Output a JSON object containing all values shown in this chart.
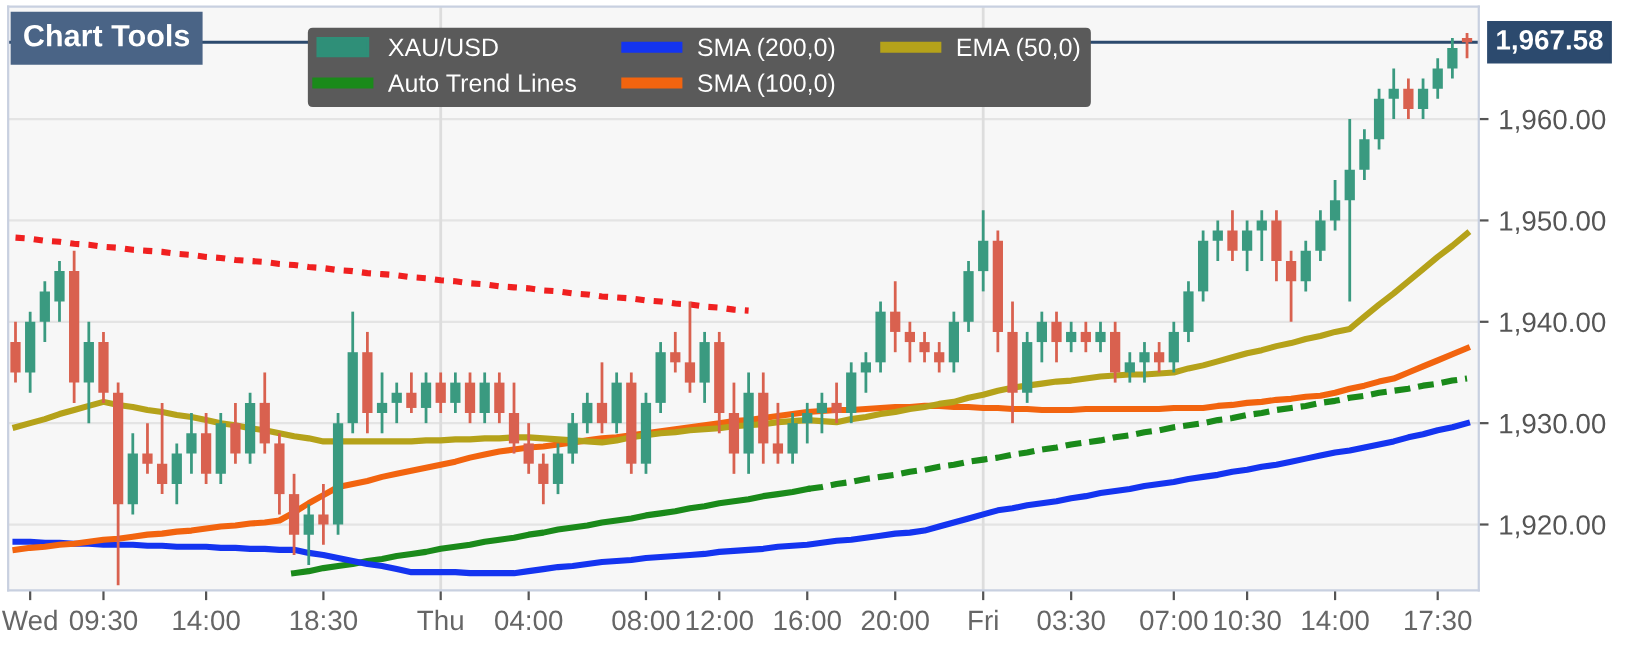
{
  "chart_data": {
    "type": "candlestick",
    "categories": [
      null,
      "Wed",
      null,
      null,
      null,
      null,
      "09:30",
      null,
      null,
      null,
      null,
      null,
      null,
      "14:00",
      null,
      null,
      null,
      null,
      null,
      null,
      null,
      "18:30",
      null,
      null,
      null,
      null,
      null,
      null,
      null,
      "Thu",
      null,
      null,
      null,
      null,
      null,
      "04:00",
      null,
      null,
      null,
      null,
      null,
      null,
      null,
      "08:00",
      null,
      null,
      null,
      null,
      "12:00",
      null,
      null,
      null,
      null,
      null,
      "16:00",
      null,
      null,
      null,
      null,
      null,
      "20:00",
      null,
      null,
      null,
      null,
      null,
      "Fri",
      null,
      null,
      null,
      null,
      null,
      "03:30",
      null,
      null,
      null,
      null,
      null,
      null,
      "07:00",
      null,
      null,
      null,
      null,
      "10:30",
      null,
      null,
      null,
      null,
      null,
      "14:00",
      null,
      null,
      null,
      null,
      null,
      null,
      "17:30",
      null,
      null
    ],
    "ylim": [
      1913.5,
      1971.1
    ],
    "yticks": [
      {
        "value": 1920,
        "label": "1,920.00"
      },
      {
        "value": 1930,
        "label": "1,930.00"
      },
      {
        "value": 1940,
        "label": "1,940.00"
      },
      {
        "value": 1950,
        "label": "1,950.00"
      },
      {
        "value": 1960,
        "label": "1,960.00"
      }
    ],
    "grid": "y",
    "legend": "top",
    "ref_lines": [
      {
        "axis": "y",
        "value": 1967.58,
        "label": "1,967.58",
        "color": "#2c4a6e"
      },
      {
        "axis": "x",
        "value": "Thu",
        "color": "#dddddd"
      },
      {
        "axis": "x",
        "value": "Fri",
        "color": "#dddddd"
      }
    ],
    "annotations": [
      "Chart Tools"
    ],
    "series": [
      {
        "name": "XAU/USD",
        "color": "#2f8f78",
        "ohlc": [
          [
            1938,
            1940,
            1934,
            1935
          ],
          [
            1935,
            1941,
            1933,
            1940
          ],
          [
            1940,
            1944,
            1938,
            1943
          ],
          [
            1942,
            1946,
            1940,
            1945
          ],
          [
            1945,
            1947,
            1932,
            1934
          ],
          [
            1934,
            1940,
            1930,
            1938
          ],
          [
            1938,
            1939,
            1932,
            1933
          ],
          [
            1933,
            1934,
            1914,
            1922
          ],
          [
            1922,
            1929,
            1921,
            1927
          ],
          [
            1927,
            1930,
            1925,
            1926
          ],
          [
            1926,
            1932,
            1923,
            1924
          ],
          [
            1924,
            1928,
            1922,
            1927
          ],
          [
            1927,
            1931,
            1925,
            1929
          ],
          [
            1929,
            1931,
            1924,
            1925
          ],
          [
            1925,
            1931,
            1924,
            1930
          ],
          [
            1930,
            1932,
            1926,
            1927
          ],
          [
            1927,
            1933,
            1926,
            1932
          ],
          [
            1932,
            1935,
            1927,
            1928
          ],
          [
            1928,
            1929,
            1921,
            1923
          ],
          [
            1923,
            1925,
            1917,
            1919
          ],
          [
            1919,
            1922,
            1916,
            1921
          ],
          [
            1921,
            1924,
            1918,
            1920
          ],
          [
            1920,
            1931,
            1919,
            1930
          ],
          [
            1930,
            1941,
            1929,
            1937
          ],
          [
            1937,
            1939,
            1929,
            1931
          ],
          [
            1931,
            1935,
            1929,
            1932
          ],
          [
            1932,
            1934,
            1930,
            1933
          ],
          [
            1933,
            1935,
            1931,
            1931.5
          ],
          [
            1931.5,
            1935,
            1930,
            1934
          ],
          [
            1934,
            1935,
            1931,
            1932
          ],
          [
            1932,
            1935,
            1931,
            1934
          ],
          [
            1934,
            1935,
            1930,
            1931
          ],
          [
            1931,
            1935,
            1930,
            1934
          ],
          [
            1934,
            1935,
            1930,
            1931
          ],
          [
            1931,
            1934,
            1927,
            1928
          ],
          [
            1928,
            1930,
            1925,
            1926
          ],
          [
            1926,
            1927,
            1922,
            1924
          ],
          [
            1924,
            1928,
            1923,
            1927
          ],
          [
            1927,
            1931,
            1926,
            1930
          ],
          [
            1930,
            1933,
            1929,
            1932
          ],
          [
            1932,
            1936,
            1929,
            1930
          ],
          [
            1930,
            1935,
            1929,
            1934
          ],
          [
            1934,
            1935,
            1925,
            1926
          ],
          [
            1926,
            1933,
            1925,
            1932
          ],
          [
            1932,
            1938,
            1931,
            1937
          ],
          [
            1937,
            1939,
            1935,
            1936
          ],
          [
            1936,
            1942,
            1933,
            1934
          ],
          [
            1934,
            1939,
            1932,
            1938
          ],
          [
            1938,
            1939,
            1929,
            1931
          ],
          [
            1931,
            1934,
            1925,
            1927
          ],
          [
            1927,
            1935,
            1925,
            1933
          ],
          [
            1933,
            1935,
            1926,
            1928
          ],
          [
            1928,
            1932,
            1926,
            1927
          ],
          [
            1927,
            1931,
            1926,
            1930
          ],
          [
            1930,
            1932,
            1928,
            1931
          ],
          [
            1931,
            1933,
            1929,
            1932
          ],
          [
            1932,
            1934,
            1930,
            1931
          ],
          [
            1931,
            1936,
            1930,
            1935
          ],
          [
            1935,
            1937,
            1933,
            1936
          ],
          [
            1936,
            1942,
            1935,
            1941
          ],
          [
            1941,
            1944,
            1937,
            1939
          ],
          [
            1939,
            1940,
            1936,
            1938
          ],
          [
            1938,
            1939,
            1936,
            1937
          ],
          [
            1937,
            1938,
            1935,
            1936
          ],
          [
            1936,
            1941,
            1935,
            1940
          ],
          [
            1940,
            1946,
            1939,
            1945
          ],
          [
            1945,
            1951,
            1943,
            1948
          ],
          [
            1948,
            1949,
            1937,
            1939
          ],
          [
            1939,
            1942,
            1930,
            1933
          ],
          [
            1933,
            1939,
            1932,
            1938
          ],
          [
            1938,
            1941,
            1936,
            1940
          ],
          [
            1940,
            1941,
            1936,
            1938
          ],
          [
            1938,
            1940,
            1937,
            1939
          ],
          [
            1939,
            1940,
            1937,
            1938
          ],
          [
            1938,
            1940,
            1937,
            1939
          ],
          [
            1939,
            1940,
            1934,
            1935
          ],
          [
            1935,
            1937,
            1934,
            1936
          ],
          [
            1936,
            1938,
            1934,
            1937
          ],
          [
            1937,
            1938,
            1935,
            1936
          ],
          [
            1936,
            1940,
            1935,
            1939
          ],
          [
            1939,
            1944,
            1938,
            1943
          ],
          [
            1943,
            1949,
            1942,
            1948
          ],
          [
            1948,
            1950,
            1946,
            1949
          ],
          [
            1949,
            1951,
            1946,
            1947
          ],
          [
            1947,
            1950,
            1945,
            1949
          ],
          [
            1949,
            1951,
            1946,
            1950
          ],
          [
            1950,
            1951,
            1944,
            1946
          ],
          [
            1946,
            1947,
            1940,
            1944
          ],
          [
            1944,
            1948,
            1943,
            1947
          ],
          [
            1947,
            1951,
            1946,
            1950
          ],
          [
            1950,
            1954,
            1949,
            1952
          ],
          [
            1952,
            1960,
            1942,
            1955
          ],
          [
            1955,
            1959,
            1954,
            1958
          ],
          [
            1958,
            1963,
            1957,
            1962
          ],
          [
            1962,
            1965,
            1960,
            1963
          ],
          [
            1963,
            1964,
            1960,
            1961
          ],
          [
            1961,
            1964,
            1960,
            1963
          ],
          [
            1963,
            1966,
            1962,
            1965
          ],
          [
            1965,
            1968,
            1964,
            1967
          ],
          [
            1968,
            1968.5,
            1966,
            1967.58
          ]
        ],
        "colors": [
          "#d9614f",
          "#3a9a80",
          "#3a9a80",
          "#3a9a80",
          "#d9614f",
          "#3a9a80",
          "#d9614f",
          "#d9614f",
          "#3a9a80",
          "#d9614f",
          "#d9614f",
          "#3a9a80",
          "#3a9a80",
          "#d9614f",
          "#3a9a80",
          "#d9614f",
          "#3a9a80",
          "#d9614f",
          "#d9614f",
          "#d9614f",
          "#3a9a80",
          "#d9614f",
          "#3a9a80",
          "#3a9a80",
          "#d9614f",
          "#3a9a80",
          "#3a9a80",
          "#d9614f",
          "#3a9a80",
          "#d9614f",
          "#3a9a80",
          "#d9614f",
          "#3a9a80",
          "#d9614f",
          "#d9614f",
          "#d9614f",
          "#d9614f",
          "#3a9a80",
          "#3a9a80",
          "#3a9a80",
          "#d9614f",
          "#3a9a80",
          "#d9614f",
          "#3a9a80",
          "#3a9a80",
          "#d9614f",
          "#d9614f",
          "#3a9a80",
          "#d9614f",
          "#d9614f",
          "#3a9a80",
          "#d9614f",
          "#d9614f",
          "#3a9a80",
          "#3a9a80",
          "#3a9a80",
          "#d9614f",
          "#3a9a80",
          "#3a9a80",
          "#3a9a80",
          "#d9614f",
          "#d9614f",
          "#d9614f",
          "#d9614f",
          "#3a9a80",
          "#3a9a80",
          "#3a9a80",
          "#d9614f",
          "#d9614f",
          "#3a9a80",
          "#3a9a80",
          "#d9614f",
          "#3a9a80",
          "#d9614f",
          "#3a9a80",
          "#d9614f",
          "#3a9a80",
          "#3a9a80",
          "#d9614f",
          "#3a9a80",
          "#3a9a80",
          "#3a9a80",
          "#3a9a80",
          "#d9614f",
          "#3a9a80",
          "#3a9a80",
          "#d9614f",
          "#d9614f",
          "#3a9a80",
          "#3a9a80",
          "#3a9a80",
          "#3a9a80",
          "#3a9a80",
          "#3a9a80",
          "#3a9a80",
          "#d9614f",
          "#3a9a80",
          "#3a9a80",
          "#3a9a80",
          "#d9614f"
        ]
      },
      {
        "name": "Auto Trend Lines",
        "type": "line",
        "color": "#1a8a1a",
        "line_style": "solid",
        "values": [
          null,
          null,
          null,
          null,
          null,
          null,
          null,
          null,
          null,
          null,
          null,
          null,
          null,
          null,
          null,
          null,
          null,
          null,
          null,
          1915.2,
          1915.4,
          1915.7,
          1915.9,
          1916.1,
          1916.4,
          1916.6,
          1916.9,
          1917.1,
          1917.3,
          1917.6,
          1917.8,
          1918.0,
          1918.3,
          1918.5,
          1918.7,
          1919.0,
          1919.2,
          1919.5,
          1919.7,
          1919.9,
          1920.2,
          1920.4,
          1920.6,
          1920.9,
          1921.1,
          1921.3,
          1921.6,
          1921.8,
          1922.1,
          1922.3,
          1922.5,
          1922.8,
          1923.0,
          1923.2,
          1923.5,
          null,
          null,
          null,
          null,
          null,
          null,
          null,
          null,
          null,
          null,
          null,
          null,
          null,
          null,
          null,
          null,
          null,
          null,
          null,
          null,
          null,
          null,
          null,
          null,
          null,
          null,
          null,
          null,
          null,
          null,
          null,
          null,
          null,
          null,
          null,
          null,
          null,
          null,
          null,
          null,
          null,
          null,
          null,
          null,
          null
        ]
      },
      {
        "type": "line",
        "color": "#1a8a1a",
        "line_style": "dashed",
        "values": [
          null,
          null,
          null,
          null,
          null,
          null,
          null,
          null,
          null,
          null,
          null,
          null,
          null,
          null,
          null,
          null,
          null,
          null,
          null,
          null,
          null,
          null,
          null,
          null,
          null,
          null,
          null,
          null,
          null,
          null,
          null,
          null,
          null,
          null,
          null,
          null,
          null,
          null,
          null,
          null,
          null,
          null,
          null,
          null,
          null,
          null,
          null,
          null,
          null,
          null,
          null,
          null,
          null,
          null,
          1923.5,
          1923.7,
          1924.0,
          1924.2,
          1924.5,
          1924.7,
          1924.9,
          1925.2,
          1925.4,
          1925.7,
          1925.9,
          1926.2,
          1926.4,
          1926.6,
          1926.9,
          1927.1,
          1927.4,
          1927.6,
          1927.9,
          1928.1,
          1928.3,
          1928.6,
          1928.8,
          1929.1,
          1929.3,
          1929.6,
          1929.8,
          1930.0,
          1930.3,
          1930.5,
          1930.8,
          1931.0,
          1931.3,
          1931.5,
          1931.7,
          1932.0,
          1932.2,
          1932.5,
          1932.7,
          1933.0,
          1933.2,
          1933.4,
          1933.7,
          1933.9,
          1934.2,
          1934.4
        ]
      },
      {
        "type": "line",
        "color": "#f02020",
        "line_style": "dotted",
        "values": [
          1948.3,
          1948.2,
          1948.0,
          1947.9,
          1947.7,
          1947.6,
          1947.4,
          1947.3,
          1947.1,
          1947.0,
          1946.9,
          1946.7,
          1946.6,
          1946.4,
          1946.3,
          1946.1,
          1946.0,
          1945.9,
          1945.7,
          1945.6,
          1945.4,
          1945.3,
          1945.1,
          1945.0,
          1944.8,
          1944.7,
          1944.6,
          1944.4,
          1944.3,
          1944.1,
          1944.0,
          1943.8,
          1943.7,
          1943.5,
          1943.4,
          1943.3,
          1943.1,
          1943.0,
          1942.8,
          1942.7,
          1942.5,
          1942.4,
          1942.3,
          1942.1,
          1942.0,
          1941.8,
          1941.7,
          1941.5,
          1941.4,
          1941.2,
          1941.1,
          null,
          null,
          null,
          null,
          null,
          null,
          null,
          null,
          null,
          null,
          null,
          null,
          null,
          null,
          null,
          null,
          null,
          null,
          null,
          null,
          null,
          null,
          null,
          null,
          null,
          null,
          null,
          null,
          null,
          null,
          null,
          null,
          null,
          null,
          null,
          null,
          null,
          null,
          null,
          null,
          null,
          null,
          null,
          null,
          null,
          null,
          null,
          null,
          null
        ]
      },
      {
        "name": "SMA (200,0)",
        "type": "line",
        "color": "#1434f0",
        "line_style": "solid",
        "values": [
          1918.3,
          1918.3,
          1918.2,
          1918.2,
          1918.1,
          1918.1,
          1918.0,
          1918.0,
          1918.0,
          1917.9,
          1917.9,
          1917.8,
          1917.8,
          1917.8,
          1917.7,
          1917.7,
          1917.6,
          1917.6,
          1917.5,
          1917.5,
          1917.2,
          1917.0,
          1916.7,
          1916.4,
          1916.1,
          1915.9,
          1915.6,
          1915.3,
          1915.3,
          1915.3,
          1915.3,
          1915.2,
          1915.2,
          1915.2,
          1915.2,
          1915.4,
          1915.6,
          1915.8,
          1915.9,
          1916.1,
          1916.3,
          1916.4,
          1916.5,
          1916.7,
          1916.8,
          1916.9,
          1917.0,
          1917.1,
          1917.3,
          1917.4,
          1917.5,
          1917.6,
          1917.8,
          1917.9,
          1918.0,
          1918.2,
          1918.4,
          1918.5,
          1918.7,
          1918.9,
          1919.1,
          1919.2,
          1919.4,
          1919.8,
          1920.2,
          1920.6,
          1921.0,
          1921.4,
          1921.6,
          1921.9,
          1922.1,
          1922.3,
          1922.6,
          1922.8,
          1923.1,
          1923.3,
          1923.5,
          1923.8,
          1924.0,
          1924.2,
          1924.5,
          1924.7,
          1924.9,
          1925.2,
          1925.4,
          1925.7,
          1925.9,
          1926.2,
          1926.5,
          1926.8,
          1927.1,
          1927.3,
          1927.6,
          1927.9,
          1928.2,
          1928.6,
          1928.9,
          1929.3,
          1929.6,
          1930.0
        ]
      },
      {
        "name": "SMA (100,0)",
        "type": "line",
        "color": "#f2640f",
        "line_style": "solid",
        "values": [
          1917.5,
          1917.7,
          1917.8,
          1918.0,
          1918.1,
          1918.3,
          1918.5,
          1918.6,
          1918.8,
          1919.0,
          1919.1,
          1919.3,
          1919.4,
          1919.6,
          1919.8,
          1919.9,
          1920.1,
          1920.2,
          1920.4,
          1921.2,
          1922.1,
          1922.9,
          1923.7,
          1924.0,
          1924.3,
          1924.7,
          1925.0,
          1925.3,
          1925.6,
          1925.9,
          1926.2,
          1926.6,
          1926.9,
          1927.2,
          1927.4,
          1927.6,
          1927.7,
          1927.9,
          1928.1,
          1928.3,
          1928.5,
          1928.6,
          1928.8,
          1929.0,
          1929.2,
          1929.4,
          1929.6,
          1929.8,
          1930.0,
          1930.2,
          1930.3,
          1930.5,
          1930.7,
          1930.9,
          1931.1,
          1931.2,
          1931.3,
          1931.3,
          1931.4,
          1931.5,
          1931.6,
          1931.6,
          1931.7,
          1931.7,
          1931.6,
          1931.6,
          1931.5,
          1931.5,
          1931.4,
          1931.4,
          1931.3,
          1931.3,
          1931.3,
          1931.4,
          1931.4,
          1931.4,
          1931.4,
          1931.4,
          1931.4,
          1931.5,
          1931.5,
          1931.5,
          1931.7,
          1931.8,
          1932.0,
          1932.1,
          1932.3,
          1932.4,
          1932.6,
          1932.7,
          1933.0,
          1933.4,
          1933.7,
          1934.1,
          1934.4,
          1935.0,
          1935.6,
          1936.2,
          1936.8,
          1937.4
        ]
      },
      {
        "name": "EMA (50,0)",
        "type": "line",
        "color": "#b5a21a",
        "line_style": "solid",
        "values": [
          1929.6,
          1930.0,
          1930.4,
          1930.9,
          1931.3,
          1931.7,
          1932.1,
          1931.8,
          1931.6,
          1931.3,
          1931.1,
          1930.8,
          1930.6,
          1930.3,
          1930.0,
          1929.8,
          1929.5,
          1929.3,
          1929.0,
          1928.7,
          1928.5,
          1928.2,
          1928.2,
          1928.2,
          1928.2,
          1928.2,
          1928.2,
          1928.2,
          1928.3,
          1928.3,
          1928.4,
          1928.4,
          1928.5,
          1928.5,
          1928.6,
          1928.6,
          1928.5,
          1928.4,
          1928.3,
          1928.2,
          1928.1,
          1928.3,
          1928.6,
          1928.8,
          1929.0,
          1929.1,
          1929.3,
          1929.4,
          1929.5,
          1929.7,
          1929.8,
          1929.9,
          1930.1,
          1930.2,
          1930.3,
          1930.2,
          1930.1,
          1930.4,
          1930.6,
          1930.9,
          1931.1,
          1931.4,
          1931.6,
          1931.9,
          1932.1,
          1932.5,
          1932.8,
          1933.2,
          1933.5,
          1933.7,
          1933.9,
          1934.1,
          1934.2,
          1934.4,
          1934.6,
          1934.7,
          1934.8,
          1934.8,
          1934.9,
          1935.0,
          1935.4,
          1935.7,
          1936.1,
          1936.5,
          1936.9,
          1937.2,
          1937.6,
          1937.9,
          1938.3,
          1938.6,
          1939.0,
          1939.3,
          1940.5,
          1941.7,
          1942.8,
          1944.0,
          1945.2,
          1946.4,
          1947.5,
          1948.7
        ]
      }
    ]
  }
}
